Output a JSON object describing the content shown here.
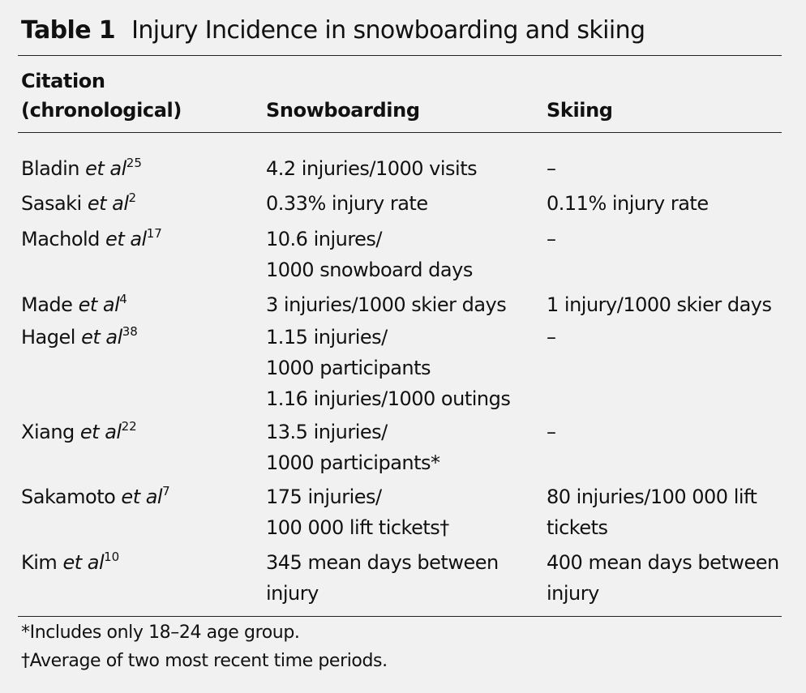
{
  "table": {
    "label": "Table 1",
    "title": "Injury Incidence in snowboarding and skiing",
    "headers": {
      "citation_line1": "Citation",
      "citation_line2": "(chronological)",
      "snowboarding": "Snowboarding",
      "skiing": "Skiing"
    },
    "rows": [
      {
        "author": "Bladin",
        "etal": "et al",
        "ref": "25",
        "snowboarding": [
          "4.2 injuries/1000 visits"
        ],
        "skiing": [
          "–"
        ]
      },
      {
        "author": "Sasaki",
        "etal": "et al",
        "ref": "2",
        "snowboarding": [
          "0.33% injury rate"
        ],
        "skiing": [
          "0.11% injury rate"
        ]
      },
      {
        "author": "Machold",
        "etal": "et al",
        "ref": "17",
        "snowboarding": [
          "10.6 injures/",
          "1000 snowboard days"
        ],
        "skiing": [
          "–"
        ]
      },
      {
        "author": "Made",
        "etal": "et al",
        "ref": "4",
        "snowboarding": [
          "3 injuries/1000 skier days"
        ],
        "skiing": [
          "1 injury/1000 skier days"
        ]
      },
      {
        "author": "Hagel",
        "etal": "et al",
        "ref": "38",
        "snowboarding": [
          "1.15 injuries/",
          "1000 participants",
          "1.16 injuries/1000 outings"
        ],
        "skiing": [
          "–"
        ]
      },
      {
        "author": "Xiang",
        "etal": "et al",
        "ref": "22",
        "snowboarding": [
          "13.5 injuries/",
          "1000 participants*"
        ],
        "skiing": [
          "–"
        ]
      },
      {
        "author": "Sakamoto",
        "etal": "et al",
        "ref": "7",
        "snowboarding": [
          "175 injuries/",
          "100 000 lift tickets†"
        ],
        "skiing": [
          "80 injuries/100 000 lift",
          "tickets"
        ]
      },
      {
        "author": "Kim",
        "etal": "et al",
        "ref": "10",
        "snowboarding": [
          "345 mean days between",
          "injury"
        ],
        "skiing": [
          "400 mean days between",
          "injury"
        ]
      }
    ],
    "footnotes": [
      "*Includes only 18–24 age group.",
      "†Average of two most recent time periods."
    ]
  }
}
